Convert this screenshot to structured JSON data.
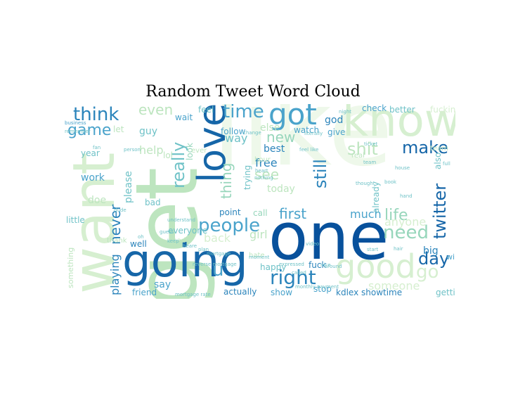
{
  "chart_data": {
    "type": "wordcloud",
    "title": "Random Tweet Word Cloud",
    "colormap": [
      "#eef8ea",
      "#d6efd0",
      "#bde5bf",
      "#97d6bb",
      "#6fc2c7",
      "#4aa3cb",
      "#2b84bb",
      "#1666a8",
      "#08519c"
    ],
    "words": [
      {
        "text": "like",
        "weight": 1.0,
        "shade": 0
      },
      {
        "text": "get",
        "weight": 0.8,
        "shade": 2
      },
      {
        "text": "one",
        "weight": 0.75,
        "shade": 8
      },
      {
        "text": "going",
        "weight": 0.6,
        "shade": 7
      },
      {
        "text": "know",
        "weight": 0.55,
        "shade": 1
      },
      {
        "text": "want",
        "weight": 0.55,
        "shade": 1
      },
      {
        "text": "love",
        "weight": 0.45,
        "shade": 7
      },
      {
        "text": "good",
        "weight": 0.4,
        "shade": 1
      },
      {
        "text": "got",
        "weight": 0.35,
        "shade": 5
      },
      {
        "text": "right",
        "weight": 0.28,
        "shade": 6
      },
      {
        "text": "people",
        "weight": 0.25,
        "shade": 5
      },
      {
        "text": "need",
        "weight": 0.24,
        "shade": 3
      },
      {
        "text": "make",
        "weight": 0.22,
        "shade": 7
      },
      {
        "text": "twitter",
        "weight": 0.22,
        "shade": 7
      },
      {
        "text": "think",
        "weight": 0.22,
        "shade": 6
      },
      {
        "text": "time",
        "weight": 0.22,
        "shade": 5
      },
      {
        "text": "really",
        "weight": 0.2,
        "shade": 4
      },
      {
        "text": "still",
        "weight": 0.2,
        "shade": 6
      },
      {
        "text": "shit",
        "weight": 0.2,
        "shade": 2
      },
      {
        "text": "day",
        "weight": 0.2,
        "shade": 7
      },
      {
        "text": "life",
        "weight": 0.2,
        "shade": 3
      },
      {
        "text": "game",
        "weight": 0.18,
        "shade": 5
      },
      {
        "text": "go",
        "weight": 0.2,
        "shade": 1
      },
      {
        "text": "never",
        "weight": 0.18,
        "shade": 6
      },
      {
        "text": "first",
        "weight": 0.17,
        "shade": 5
      },
      {
        "text": "new",
        "weight": 0.17,
        "shade": 3
      },
      {
        "text": "thing",
        "weight": 0.17,
        "shade": 3
      },
      {
        "text": "even",
        "weight": 0.15,
        "shade": 2
      },
      {
        "text": "much",
        "weight": 0.14,
        "shade": 5
      },
      {
        "text": "see",
        "weight": 0.15,
        "shade": 2
      },
      {
        "text": "help",
        "weight": 0.13,
        "shade": 2
      },
      {
        "text": "anyone",
        "weight": 0.13,
        "shade": 1
      },
      {
        "text": "someone",
        "weight": 0.12,
        "shade": 1
      },
      {
        "text": "free",
        "weight": 0.12,
        "shade": 6
      },
      {
        "text": "best",
        "weight": 0.11,
        "shade": 6
      },
      {
        "text": "playing",
        "weight": 0.11,
        "shade": 6
      },
      {
        "text": "work",
        "weight": 0.11,
        "shade": 5
      },
      {
        "text": "way",
        "weight": 0.11,
        "shade": 4
      },
      {
        "text": "guy",
        "weight": 0.11,
        "shade": 4
      },
      {
        "text": "girl",
        "weight": 0.11,
        "shade": 2
      },
      {
        "text": "back",
        "weight": 0.11,
        "shade": 1
      },
      {
        "text": "today",
        "weight": 0.1,
        "shade": 2
      },
      {
        "text": "god",
        "weight": 0.1,
        "shade": 6
      },
      {
        "text": "please",
        "weight": 0.1,
        "shade": 4
      },
      {
        "text": "big",
        "weight": 0.1,
        "shade": 6
      },
      {
        "text": "say",
        "weight": 0.1,
        "shade": 5
      },
      {
        "text": "doe",
        "weight": 0.1,
        "shade": 2
      },
      {
        "text": "year",
        "weight": 0.08,
        "shade": 4
      },
      {
        "text": "feel",
        "weight": 0.08,
        "shade": 4
      },
      {
        "text": "wait",
        "weight": 0.08,
        "shade": 5
      },
      {
        "text": "follow",
        "weight": 0.08,
        "shade": 5
      },
      {
        "text": "watch",
        "weight": 0.08,
        "shade": 5
      },
      {
        "text": "check",
        "weight": 0.08,
        "shade": 5
      },
      {
        "text": "better",
        "weight": 0.08,
        "shade": 4
      },
      {
        "text": "fucking",
        "weight": 0.08,
        "shade": 1
      },
      {
        "text": "give",
        "weight": 0.08,
        "shade": 5
      },
      {
        "text": "point",
        "weight": 0.08,
        "shade": 6
      },
      {
        "text": "call",
        "weight": 0.08,
        "shade": 3
      },
      {
        "text": "everyone",
        "weight": 0.08,
        "shade": 4
      },
      {
        "text": "well",
        "weight": 0.08,
        "shade": 6
      },
      {
        "text": "bad",
        "weight": 0.08,
        "shade": 4
      },
      {
        "text": "little",
        "weight": 0.08,
        "shade": 4
      },
      {
        "text": "friend",
        "weight": 0.08,
        "shade": 5
      },
      {
        "text": "actually",
        "weight": 0.08,
        "shade": 6
      },
      {
        "text": "show",
        "weight": 0.08,
        "shade": 5
      },
      {
        "text": "stop",
        "weight": 0.08,
        "shade": 5
      },
      {
        "text": "fuck",
        "weight": 0.08,
        "shade": 6
      },
      {
        "text": "happy",
        "weight": 0.08,
        "shade": 4
      },
      {
        "text": "kdlex showtime",
        "weight": 0.08,
        "shade": 6
      },
      {
        "text": "getting",
        "weight": 0.08,
        "shade": 4
      },
      {
        "text": "trying",
        "weight": 0.07,
        "shade": 4
      },
      {
        "text": "also",
        "weight": 0.07,
        "shade": 4
      },
      {
        "text": "already",
        "weight": 0.07,
        "shade": 4
      },
      {
        "text": "something",
        "weight": 0.07,
        "shade": 2
      },
      {
        "text": "win",
        "weight": 0.07,
        "shade": 5
      },
      {
        "text": "let",
        "weight": 0.07,
        "shade": 2
      },
      {
        "text": "look",
        "weight": 0.07,
        "shade": 3
      },
      {
        "text": "u",
        "weight": 0.14,
        "shade": 5
      },
      {
        "text": "hour",
        "weight": 0.07,
        "shade": 2
      },
      {
        "text": "real",
        "weight": 0.07,
        "shade": 2
      },
      {
        "text": "else",
        "weight": 0.07,
        "shade": 2
      },
      {
        "text": "ever",
        "weight": 0.07,
        "shade": 2
      },
      {
        "text": "thank",
        "weight": 0.07,
        "shade": 2
      },
      {
        "text": "hate",
        "weight": 0.07,
        "shade": 2
      },
      {
        "text": "made",
        "weight": 0.07,
        "shade": 2
      },
      {
        "text": "team",
        "weight": 0.07,
        "shade": 2
      },
      {
        "text": "lol",
        "weight": 0.07,
        "shade": 2
      },
      {
        "text": "keep",
        "weight": 0.05,
        "shade": 4
      },
      {
        "text": "business",
        "weight": 0.04,
        "shade": 5
      },
      {
        "text": "remember",
        "weight": 0.04,
        "shade": 4
      },
      {
        "text": "fan",
        "weight": 0.04,
        "shade": 4
      },
      {
        "text": "person",
        "weight": 0.04,
        "shade": 4
      },
      {
        "text": "night",
        "weight": 0.04,
        "shade": 4
      },
      {
        "text": "change",
        "weight": 0.04,
        "shade": 4
      },
      {
        "text": "literally",
        "weight": 0.04,
        "shade": 4
      },
      {
        "text": "feel like",
        "weight": 0.04,
        "shade": 4
      },
      {
        "text": "heart",
        "weight": 0.04,
        "shade": 4
      },
      {
        "text": "nothing",
        "weight": 0.04,
        "shade": 4
      },
      {
        "text": "thought",
        "weight": 0.04,
        "shade": 4
      },
      {
        "text": "team",
        "weight": 0.04,
        "shade": 4
      },
      {
        "text": "full",
        "weight": 0.04,
        "shade": 4
      },
      {
        "text": "understand",
        "weight": 0.04,
        "shade": 4
      },
      {
        "text": "mortgage",
        "weight": 0.04,
        "shade": 4
      },
      {
        "text": "reverse mortgage",
        "weight": 0.04,
        "shade": 4
      },
      {
        "text": "video",
        "weight": 0.04,
        "shade": 4
      },
      {
        "text": "hair",
        "weight": 0.04,
        "shade": 4
      },
      {
        "text": "ticket",
        "weight": 0.04,
        "shade": 4
      },
      {
        "text": "called",
        "weight": 0.04,
        "shade": 4
      },
      {
        "text": "monthly payment",
        "weight": 0.04,
        "shade": 4
      },
      {
        "text": "mortgage rate",
        "weight": 0.04,
        "shade": 4
      },
      {
        "text": "dude",
        "weight": 0.04,
        "shade": 4
      },
      {
        "text": "guess",
        "weight": 0.04,
        "shade": 4
      },
      {
        "text": "start",
        "weight": 0.04,
        "shade": 4
      },
      {
        "text": "hand",
        "weight": 0.04,
        "shade": 4
      },
      {
        "text": "beare",
        "weight": 0.04,
        "shade": 4
      },
      {
        "text": "plan",
        "weight": 0.04,
        "shade": 4
      },
      {
        "text": "oh",
        "weight": 0.04,
        "shade": 4
      },
      {
        "text": "moment",
        "weight": 0.04,
        "shade": 4
      },
      {
        "text": "expressed",
        "weight": 0.04,
        "shade": 4
      },
      {
        "text": "around",
        "weight": 0.04,
        "shade": 4
      },
      {
        "text": "book",
        "weight": 0.04,
        "shade": 4
      },
      {
        "text": "house",
        "weight": 0.04,
        "shade": 4
      },
      {
        "text": "nice",
        "weight": 0.04,
        "shade": 4
      }
    ]
  }
}
